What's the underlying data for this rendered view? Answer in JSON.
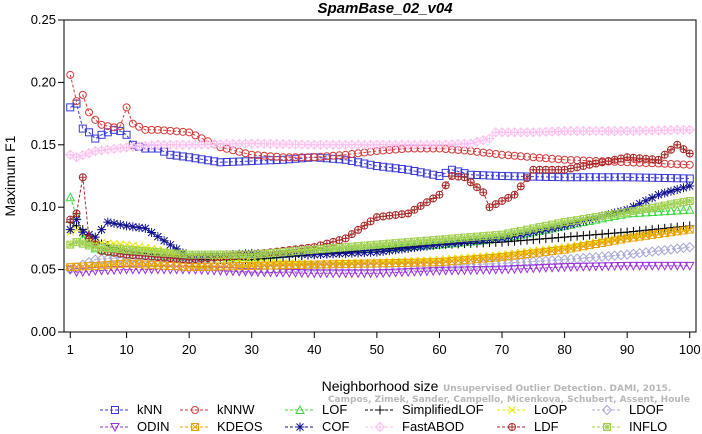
{
  "chart_data": {
    "type": "line",
    "title": "SpamBase_02_v04",
    "xlabel": "Neighborhood size",
    "ylabel": "Maximum F1",
    "xlim": [
      0,
      101
    ],
    "ylim": [
      0,
      0.25
    ],
    "xticks": [
      1,
      10,
      20,
      30,
      40,
      50,
      60,
      70,
      80,
      90,
      100
    ],
    "yticks": [
      0.0,
      0.05,
      0.1,
      0.15,
      0.2,
      0.25
    ],
    "ytick_labels": [
      "0.00",
      "0.05",
      "0.10",
      "0.15",
      "0.20",
      "0.25"
    ],
    "legend_position": "bottom",
    "watermark": [
      "Unsupervised Outlier Detection. DAMI, 2015.",
      "Campos, Zimek, Sander, Campello, Micenkova, Schubert, Assent, Houle"
    ],
    "series": [
      {
        "name": "kNN",
        "color": "#3a3ad8",
        "marker": "square",
        "points": [
          [
            1,
            0.18
          ],
          [
            2,
            0.183
          ],
          [
            3,
            0.163
          ],
          [
            4,
            0.16
          ],
          [
            5,
            0.155
          ],
          [
            6,
            0.158
          ],
          [
            7,
            0.16
          ],
          [
            8,
            0.162
          ],
          [
            9,
            0.161
          ],
          [
            10,
            0.158
          ],
          [
            11,
            0.15
          ],
          [
            13,
            0.147
          ],
          [
            15,
            0.147
          ],
          [
            17,
            0.142
          ],
          [
            20,
            0.14
          ],
          [
            25,
            0.136
          ],
          [
            30,
            0.137
          ],
          [
            35,
            0.138
          ],
          [
            40,
            0.14
          ],
          [
            45,
            0.138
          ],
          [
            50,
            0.133
          ],
          [
            55,
            0.13
          ],
          [
            60,
            0.125
          ],
          [
            62,
            0.13
          ],
          [
            65,
            0.126
          ],
          [
            70,
            0.125
          ],
          [
            80,
            0.124
          ],
          [
            90,
            0.124
          ],
          [
            100,
            0.123
          ]
        ]
      },
      {
        "name": "kNNW",
        "color": "#d63a3a",
        "marker": "circle",
        "points": [
          [
            1,
            0.206
          ],
          [
            2,
            0.185
          ],
          [
            3,
            0.19
          ],
          [
            4,
            0.176
          ],
          [
            5,
            0.17
          ],
          [
            6,
            0.166
          ],
          [
            7,
            0.165
          ],
          [
            8,
            0.164
          ],
          [
            9,
            0.165
          ],
          [
            10,
            0.18
          ],
          [
            11,
            0.167
          ],
          [
            13,
            0.162
          ],
          [
            15,
            0.162
          ],
          [
            20,
            0.16
          ],
          [
            25,
            0.148
          ],
          [
            30,
            0.142
          ],
          [
            35,
            0.14
          ],
          [
            40,
            0.14
          ],
          [
            45,
            0.142
          ],
          [
            50,
            0.145
          ],
          [
            55,
            0.147
          ],
          [
            60,
            0.147
          ],
          [
            65,
            0.145
          ],
          [
            70,
            0.142
          ],
          [
            80,
            0.138
          ],
          [
            90,
            0.136
          ],
          [
            100,
            0.134
          ]
        ]
      },
      {
        "name": "LOF",
        "color": "#3ad83a",
        "marker": "triangle-up",
        "points": [
          [
            1,
            0.108
          ],
          [
            2,
            0.093
          ],
          [
            3,
            0.075
          ],
          [
            5,
            0.067
          ],
          [
            10,
            0.062
          ],
          [
            20,
            0.06
          ],
          [
            30,
            0.06
          ],
          [
            40,
            0.065
          ],
          [
            50,
            0.067
          ],
          [
            60,
            0.07
          ],
          [
            70,
            0.075
          ],
          [
            80,
            0.085
          ],
          [
            90,
            0.095
          ],
          [
            100,
            0.098
          ]
        ]
      },
      {
        "name": "SimplifiedLOF",
        "color": "#000000",
        "marker": "plus",
        "points": [
          [
            1,
            0.088
          ],
          [
            2,
            0.085
          ],
          [
            3,
            0.082
          ],
          [
            5,
            0.072
          ],
          [
            10,
            0.065
          ],
          [
            20,
            0.058
          ],
          [
            30,
            0.058
          ],
          [
            40,
            0.062
          ],
          [
            50,
            0.066
          ],
          [
            60,
            0.07
          ],
          [
            70,
            0.072
          ],
          [
            80,
            0.076
          ],
          [
            90,
            0.08
          ],
          [
            100,
            0.085
          ]
        ]
      },
      {
        "name": "LoOP",
        "color": "#e8e800",
        "marker": "cross",
        "points": [
          [
            1,
            0.08
          ],
          [
            2,
            0.082
          ],
          [
            3,
            0.079
          ],
          [
            5,
            0.072
          ],
          [
            10,
            0.07
          ],
          [
            20,
            0.062
          ],
          [
            30,
            0.056
          ],
          [
            40,
            0.055
          ],
          [
            50,
            0.056
          ],
          [
            60,
            0.058
          ],
          [
            70,
            0.062
          ],
          [
            80,
            0.068
          ],
          [
            90,
            0.076
          ],
          [
            100,
            0.082
          ]
        ]
      },
      {
        "name": "LDOF",
        "color": "#a8a8d8",
        "marker": "diamond",
        "points": [
          [
            1,
            0.05
          ],
          [
            5,
            0.058
          ],
          [
            10,
            0.06
          ],
          [
            20,
            0.055
          ],
          [
            30,
            0.05
          ],
          [
            40,
            0.052
          ],
          [
            50,
            0.052
          ],
          [
            60,
            0.053
          ],
          [
            70,
            0.055
          ],
          [
            80,
            0.058
          ],
          [
            90,
            0.062
          ],
          [
            100,
            0.068
          ]
        ]
      },
      {
        "name": "ODIN",
        "color": "#9a30e0",
        "marker": "triangle-down",
        "points": [
          [
            1,
            0.05
          ],
          [
            2,
            0.048
          ],
          [
            3,
            0.048
          ],
          [
            5,
            0.049
          ],
          [
            10,
            0.05
          ],
          [
            20,
            0.05
          ],
          [
            30,
            0.048
          ],
          [
            40,
            0.047
          ],
          [
            50,
            0.047
          ],
          [
            60,
            0.049
          ],
          [
            70,
            0.05
          ],
          [
            80,
            0.052
          ],
          [
            90,
            0.053
          ],
          [
            100,
            0.053
          ]
        ]
      },
      {
        "name": "KDEOS",
        "color": "#e8a000",
        "marker": "square-x",
        "points": [
          [
            1,
            0.052
          ],
          [
            5,
            0.053
          ],
          [
            10,
            0.055
          ],
          [
            20,
            0.052
          ],
          [
            30,
            0.053
          ],
          [
            40,
            0.054
          ],
          [
            50,
            0.055
          ],
          [
            60,
            0.056
          ],
          [
            70,
            0.06
          ],
          [
            80,
            0.066
          ],
          [
            90,
            0.075
          ],
          [
            100,
            0.082
          ]
        ]
      },
      {
        "name": "COF",
        "color": "#101090",
        "marker": "star",
        "points": [
          [
            1,
            0.082
          ],
          [
            2,
            0.09
          ],
          [
            3,
            0.08
          ],
          [
            5,
            0.076
          ],
          [
            7,
            0.088
          ],
          [
            10,
            0.085
          ],
          [
            13,
            0.083
          ],
          [
            20,
            0.06
          ],
          [
            30,
            0.063
          ],
          [
            40,
            0.062
          ],
          [
            50,
            0.064
          ],
          [
            60,
            0.07
          ],
          [
            70,
            0.075
          ],
          [
            80,
            0.085
          ],
          [
            90,
            0.098
          ],
          [
            95,
            0.11
          ],
          [
            100,
            0.117
          ]
        ]
      },
      {
        "name": "FastABOD",
        "color": "#ffc0f0",
        "marker": "diamond-plus",
        "points": [
          [
            1,
            0.142
          ],
          [
            2,
            0.14
          ],
          [
            5,
            0.145
          ],
          [
            10,
            0.148
          ],
          [
            15,
            0.15
          ],
          [
            20,
            0.15
          ],
          [
            30,
            0.151
          ],
          [
            40,
            0.15
          ],
          [
            50,
            0.15
          ],
          [
            60,
            0.15
          ],
          [
            65,
            0.151
          ],
          [
            68,
            0.155
          ],
          [
            69,
            0.16
          ],
          [
            75,
            0.16
          ],
          [
            80,
            0.161
          ],
          [
            90,
            0.161
          ],
          [
            100,
            0.162
          ]
        ]
      },
      {
        "name": "LDF",
        "color": "#a82828",
        "marker": "circle-plus",
        "points": [
          [
            1,
            0.09
          ],
          [
            2,
            0.095
          ],
          [
            3,
            0.124
          ],
          [
            4,
            0.075
          ],
          [
            6,
            0.065
          ],
          [
            10,
            0.062
          ],
          [
            20,
            0.058
          ],
          [
            30,
            0.062
          ],
          [
            40,
            0.068
          ],
          [
            45,
            0.075
          ],
          [
            50,
            0.092
          ],
          [
            55,
            0.095
          ],
          [
            60,
            0.11
          ],
          [
            62,
            0.125
          ],
          [
            64,
            0.124
          ],
          [
            67,
            0.112
          ],
          [
            68,
            0.1
          ],
          [
            70,
            0.105
          ],
          [
            72,
            0.11
          ],
          [
            75,
            0.13
          ],
          [
            80,
            0.13
          ],
          [
            85,
            0.135
          ],
          [
            90,
            0.14
          ],
          [
            95,
            0.138
          ],
          [
            98,
            0.15
          ],
          [
            100,
            0.143
          ]
        ]
      },
      {
        "name": "INFLO",
        "color": "#a0d050",
        "marker": "square-star",
        "points": [
          [
            1,
            0.07
          ],
          [
            2,
            0.072
          ],
          [
            5,
            0.068
          ],
          [
            10,
            0.066
          ],
          [
            20,
            0.062
          ],
          [
            30,
            0.062
          ],
          [
            40,
            0.066
          ],
          [
            50,
            0.07
          ],
          [
            60,
            0.074
          ],
          [
            70,
            0.078
          ],
          [
            80,
            0.088
          ],
          [
            90,
            0.096
          ],
          [
            100,
            0.105
          ]
        ]
      }
    ]
  }
}
